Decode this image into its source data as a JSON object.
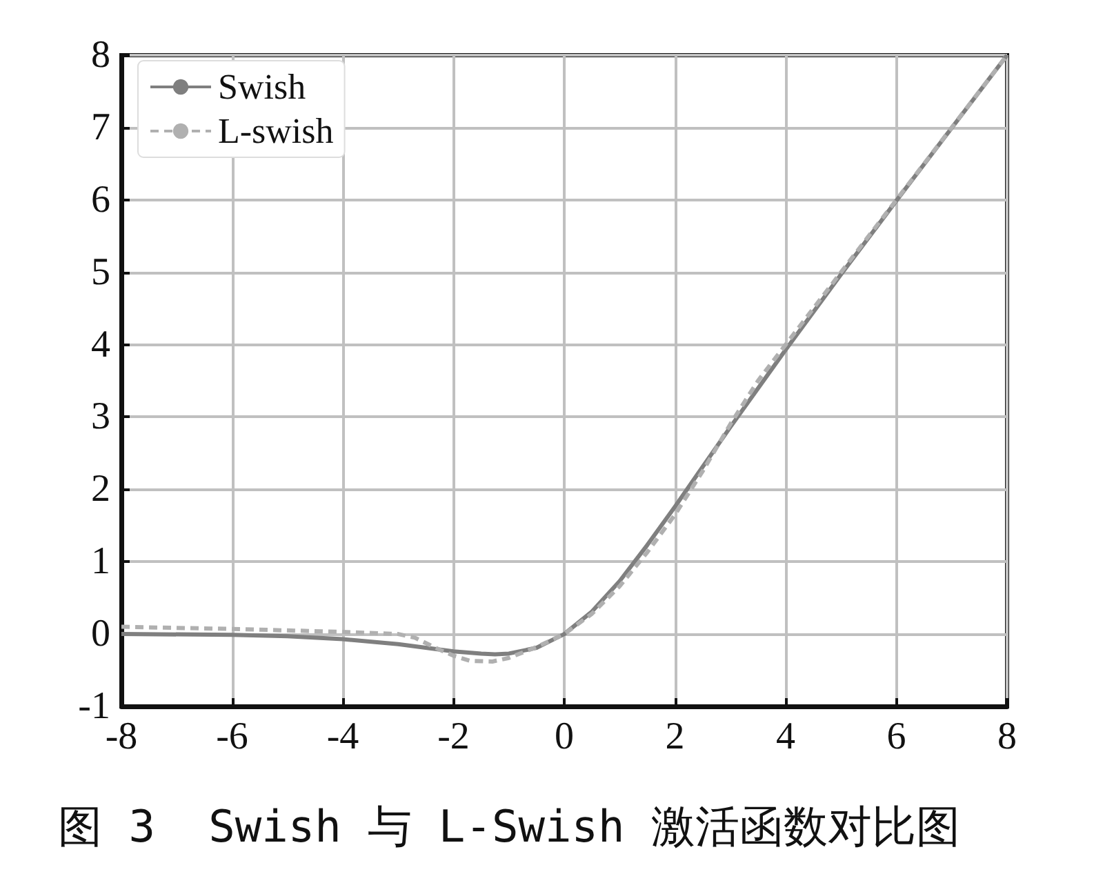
{
  "chart_data": {
    "type": "line",
    "xlim": [
      -8,
      8
    ],
    "xticks": [
      -8,
      -6,
      -4,
      -2,
      0,
      2,
      4,
      6,
      8
    ],
    "ylim": [
      -1,
      8
    ],
    "yticks": [
      -1,
      0,
      1,
      2,
      3,
      4,
      5,
      6,
      7,
      8
    ],
    "grid": true,
    "legend": "top left",
    "marker": "none",
    "annotations": [
      "图 3  Swish 与 L-Swish 激活函数对比图"
    ],
    "series": [
      {
        "name": "Swish",
        "color": "#7f7f7f",
        "line_style": "solid",
        "x": [
          -8,
          -6,
          -5,
          -4,
          -3,
          -2.5,
          -2,
          -1.5,
          -1.25,
          -1,
          -0.5,
          0,
          0.5,
          1,
          1.5,
          2,
          2.5,
          3,
          4,
          5,
          6,
          8
        ],
        "values": [
          0,
          -0.01,
          -0.03,
          -0.07,
          -0.14,
          -0.19,
          -0.24,
          -0.27,
          -0.28,
          -0.27,
          -0.19,
          0,
          0.31,
          0.73,
          1.23,
          1.76,
          2.31,
          2.86,
          3.93,
          4.97,
          5.99,
          8
        ]
      },
      {
        "name": "L-swish",
        "color": "#b0b0b0",
        "line_style": "dashed",
        "x": [
          -8,
          -6,
          -4,
          -3,
          -2.7,
          -2.3,
          -2,
          -1.7,
          -1.3,
          -1,
          -0.5,
          0,
          0.5,
          1,
          1.5,
          2,
          2.5,
          3,
          3.5,
          4,
          5,
          6,
          8
        ],
        "values": [
          0.1,
          0.07,
          0.03,
          0,
          -0.05,
          -0.2,
          -0.3,
          -0.37,
          -0.38,
          -0.33,
          -0.18,
          0,
          0.28,
          0.66,
          1.13,
          1.65,
          2.25,
          2.9,
          3.5,
          4,
          5,
          6,
          8
        ]
      }
    ]
  }
}
